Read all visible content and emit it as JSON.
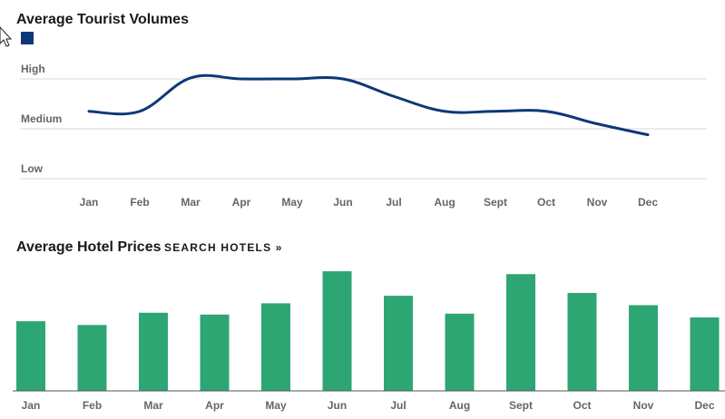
{
  "links": {
    "search_hotels": "SEARCH HOTELS »"
  },
  "colors": {
    "tourist_line": "#0d3878",
    "hotel_bar": "#2ea674",
    "axis_text": "#666666"
  },
  "chart_data": [
    {
      "type": "line",
      "title": "Average Tourist Volumes",
      "legend": {
        "placement": "top-left",
        "entries": [
          ""
        ]
      },
      "categories": [
        "Jan",
        "Feb",
        "Mar",
        "Apr",
        "May",
        "Jun",
        "Jul",
        "Aug",
        "Sept",
        "Oct",
        "Nov",
        "Dec"
      ],
      "y_levels": [
        "Low",
        "Medium",
        "High"
      ],
      "ylim": [
        0,
        2
      ],
      "grid": true,
      "series": [
        {
          "values": [
            1.35,
            1.35,
            2.02,
            2.0,
            2.0,
            2.0,
            1.65,
            1.35,
            1.35,
            1.35,
            1.1,
            0.88
          ]
        }
      ]
    },
    {
      "type": "bar",
      "title": "Average Hotel Prices",
      "categories": [
        "Jan",
        "Feb",
        "Mar",
        "Apr",
        "May",
        "Jun",
        "Jul",
        "Aug",
        "Sept",
        "Oct",
        "Nov",
        "Dec"
      ],
      "values": [
        74,
        70,
        83,
        81,
        93,
        127,
        101,
        82,
        124,
        104,
        91,
        78
      ],
      "ylim": [
        0,
        130
      ],
      "grid": false
    }
  ]
}
